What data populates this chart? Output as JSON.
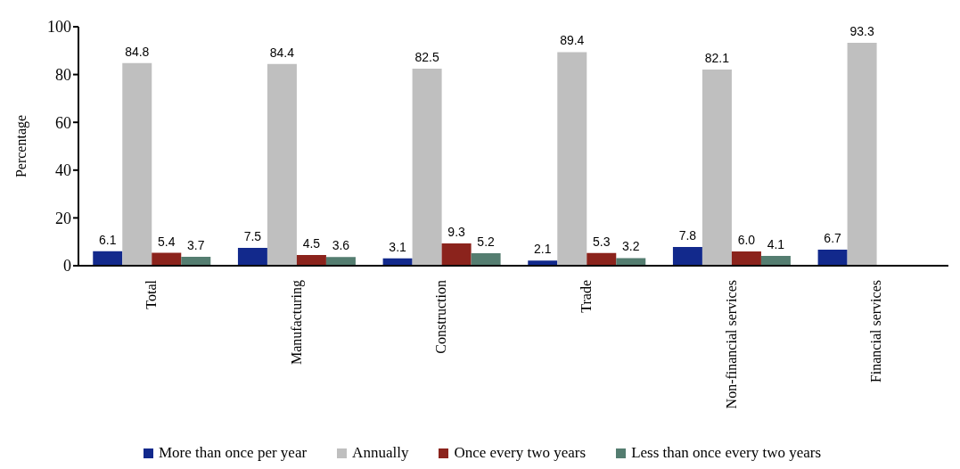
{
  "chart_data": {
    "type": "bar",
    "ylabel": "Percentage",
    "categories": [
      "Total",
      "Manufacturing",
      "Construction",
      "Trade",
      "Non-financial services",
      "Financial services"
    ],
    "series": [
      {
        "name": "More than once per year",
        "color": "#12298c",
        "values": [
          6.1,
          7.5,
          3.1,
          2.1,
          7.8,
          6.7
        ],
        "value_labels": [
          "6.1",
          "7.5",
          "3.1",
          "2.1",
          "7.8",
          "6.7"
        ]
      },
      {
        "name": "Annually",
        "color": "#bfbfbf",
        "values": [
          84.8,
          84.4,
          82.5,
          89.4,
          82.1,
          93.3
        ],
        "value_labels": [
          "84.8",
          "84.4",
          "82.5",
          "89.4",
          "82.1",
          "93.3"
        ]
      },
      {
        "name": "Once every two years",
        "color": "#8b231c",
        "values": [
          5.4,
          4.5,
          9.3,
          5.3,
          6.0,
          null
        ],
        "value_labels": [
          "5.4",
          "4.5",
          "9.3",
          "5.3",
          "6.0",
          null
        ]
      },
      {
        "name": "Less than once every two years",
        "color": "#547d70",
        "values": [
          3.7,
          3.6,
          5.2,
          3.2,
          4.1,
          null
        ],
        "value_labels": [
          "3.7",
          "3.6",
          "5.2",
          "3.2",
          "4.1",
          null
        ]
      }
    ],
    "ylim": [
      0,
      100
    ],
    "yticks": [
      0,
      20,
      40,
      60,
      80,
      100
    ],
    "grid": false,
    "legend": "bottom"
  }
}
